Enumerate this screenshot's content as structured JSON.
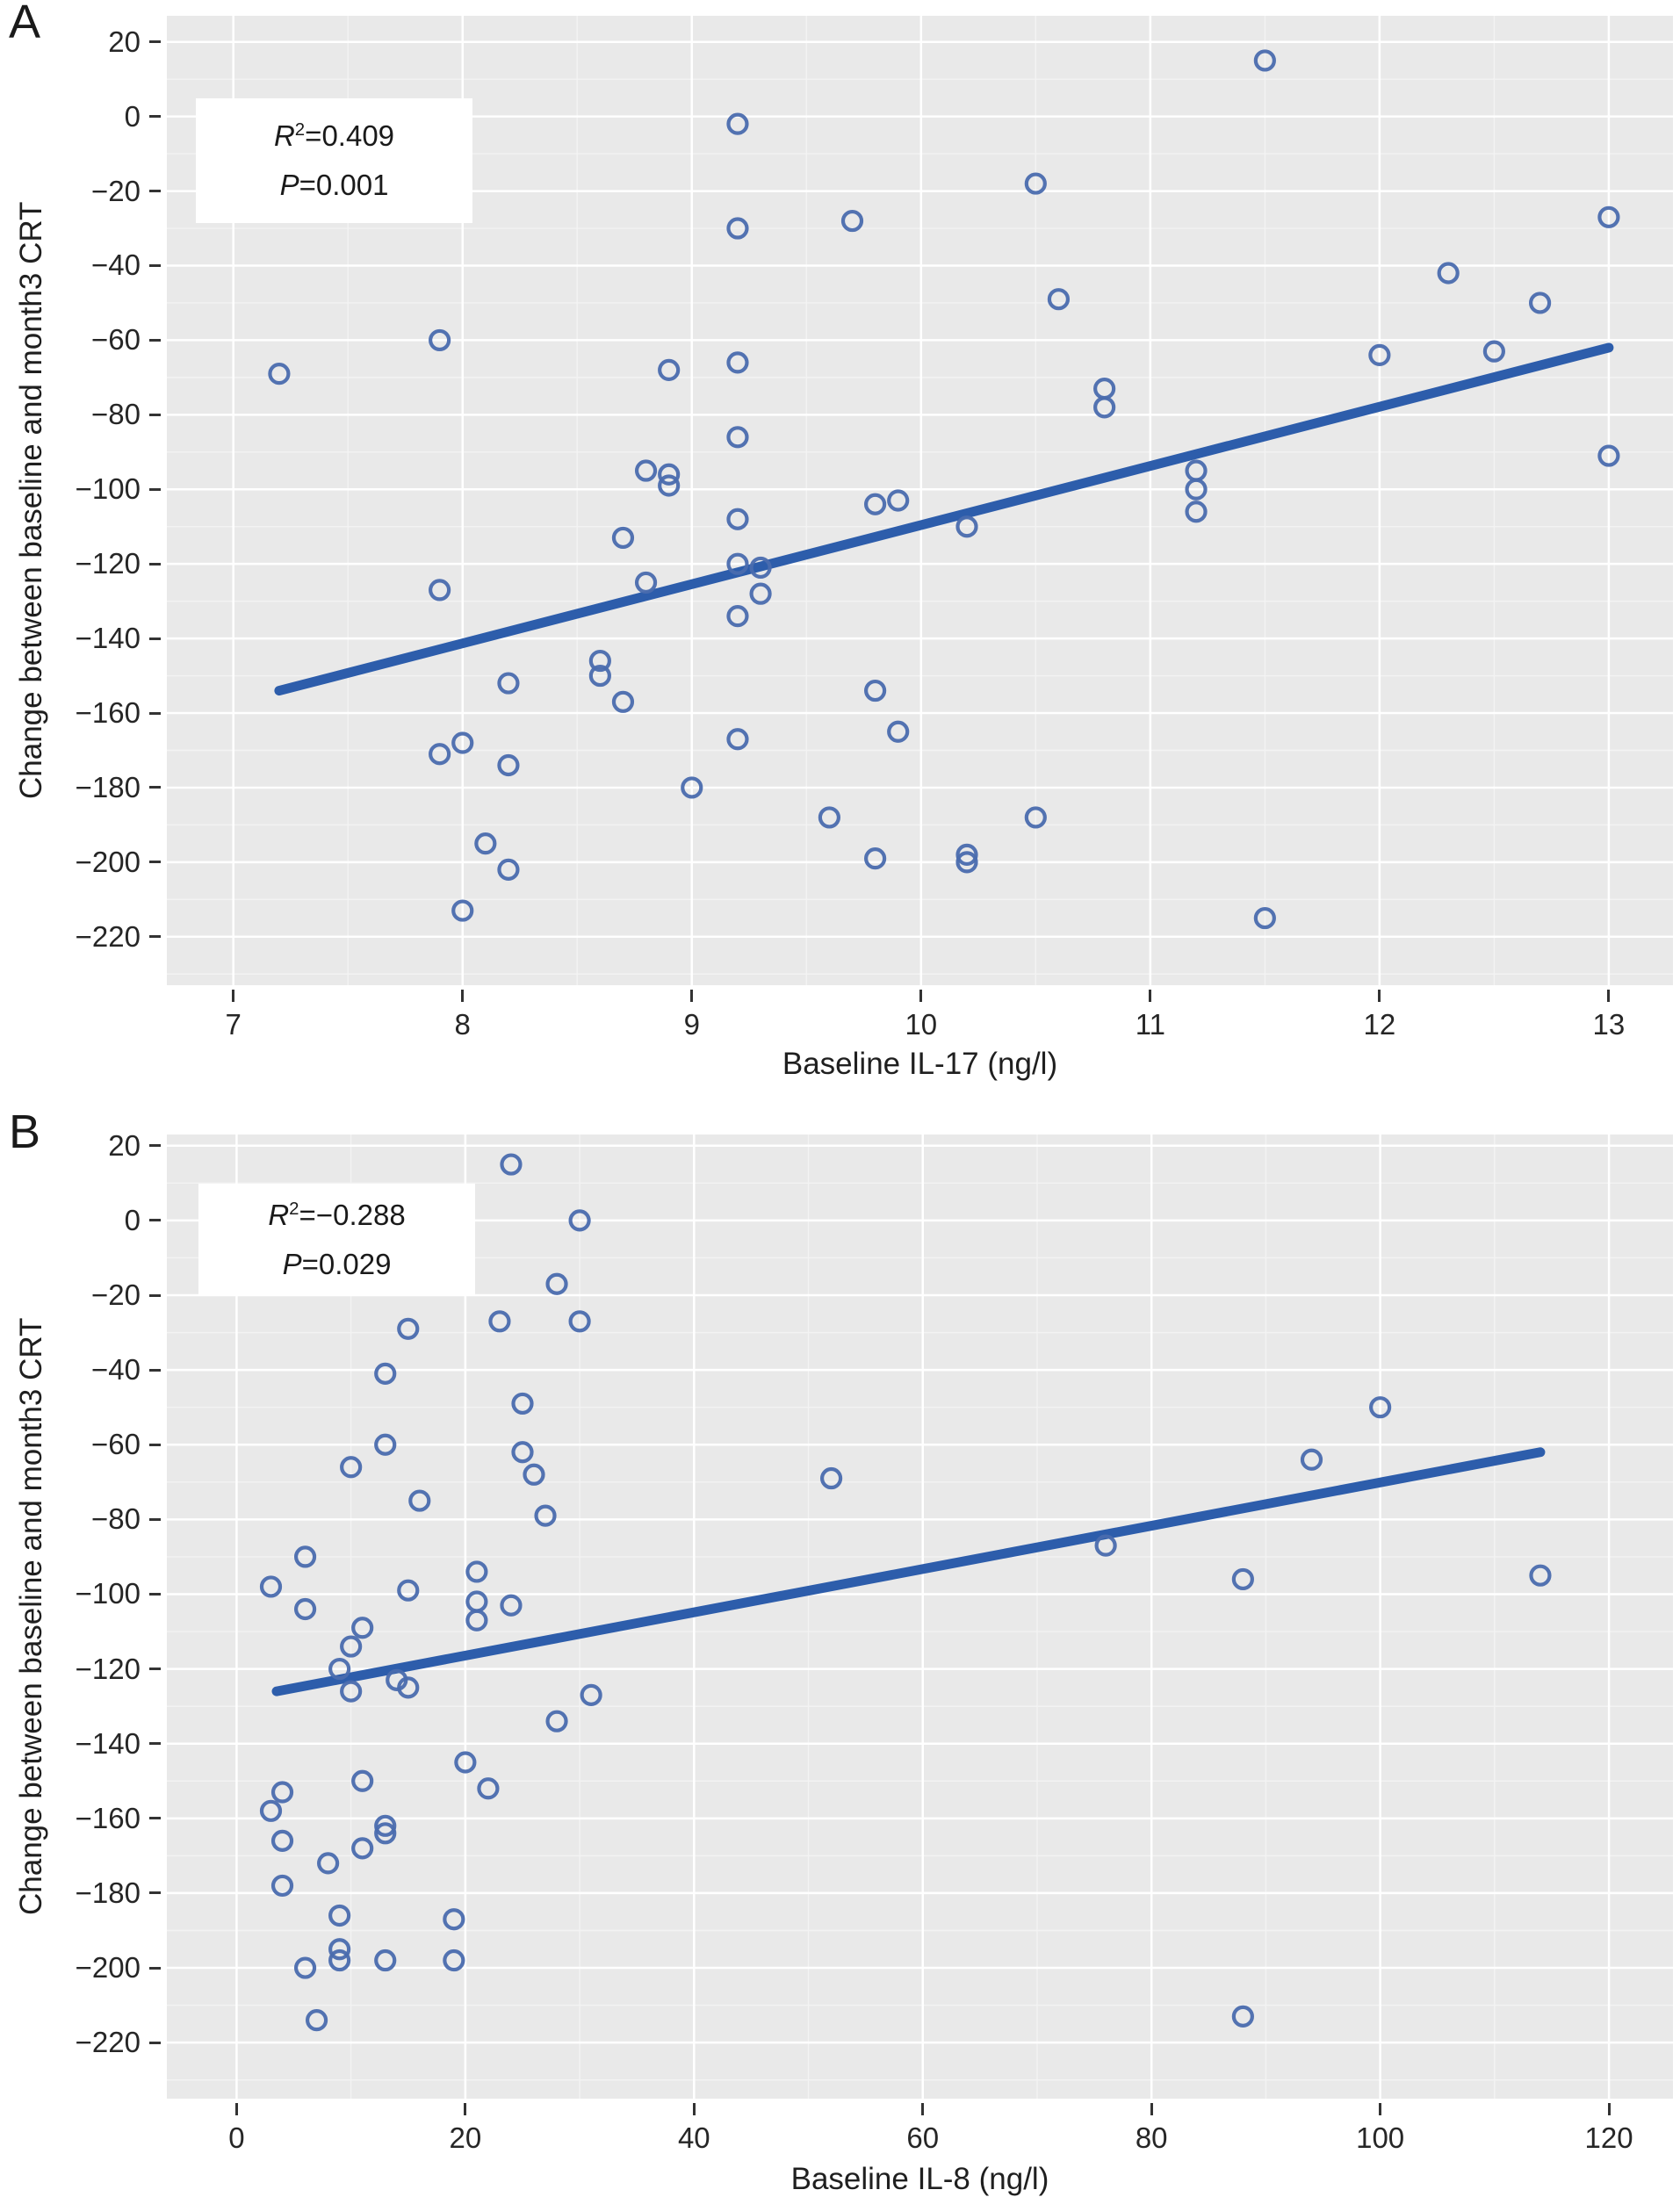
{
  "figure": {
    "panel_a_label": "A",
    "panel_b_label": "B",
    "background": "#ffffff",
    "plot_background": "#e9e9e9",
    "grid_major_color": "#ffffff",
    "grid_minor_color": "#f3f3f3",
    "tick_color": "#333333",
    "text_color": "#262626",
    "point_color": "#4a6bae",
    "line_color": "#2d5dab"
  },
  "chart_data": [
    {
      "id": "A",
      "type": "scatter",
      "xlabel": "Baseline IL-17 (ng/l)",
      "ylabel": "Change between baseline and month3 CRT",
      "stats": {
        "r_symbol": "R",
        "r_sup": "2",
        "r_value": "=0.409",
        "p_symbol": "P",
        "p_value": "=0.001"
      },
      "xlim": [
        6.71,
        13.28
      ],
      "ylim": [
        -233,
        27
      ],
      "x_ticks": [
        7,
        8,
        9,
        10,
        11,
        12,
        13
      ],
      "x_tick_labels": [
        "7",
        "8",
        "9",
        "10",
        "11",
        "12",
        "13"
      ],
      "x_minor": [
        7.5,
        8.5,
        9.5,
        10.5,
        11.5,
        12.5
      ],
      "y_ticks": [
        20,
        0,
        -20,
        -40,
        -60,
        -80,
        -100,
        -120,
        -140,
        -160,
        -180,
        -200,
        -220
      ],
      "y_tick_labels": [
        "20",
        "0",
        "−20",
        "−40",
        "−60",
        "−80",
        "−100",
        "−120",
        "−140",
        "−160",
        "−180",
        "−200",
        "−220"
      ],
      "y_minor": [
        10,
        -10,
        -30,
        -50,
        -70,
        -90,
        -110,
        -130,
        -150,
        -170,
        -190,
        -210,
        -230
      ],
      "grid": true,
      "legend": "none",
      "trend_line": {
        "x": [
          7.2,
          13.0
        ],
        "y": [
          -154,
          -62
        ]
      },
      "points": [
        [
          11.5,
          15
        ],
        [
          9.2,
          -2
        ],
        [
          10.5,
          -18
        ],
        [
          9.7,
          -28
        ],
        [
          13,
          -27
        ],
        [
          9.2,
          -30
        ],
        [
          12.3,
          -42
        ],
        [
          10.6,
          -49
        ],
        [
          12.7,
          -50
        ],
        [
          7.9,
          -60
        ],
        [
          12,
          -64
        ],
        [
          12.5,
          -63
        ],
        [
          9.2,
          -66
        ],
        [
          8.9,
          -68
        ],
        [
          7.2,
          -69
        ],
        [
          10.8,
          -73
        ],
        [
          10.8,
          -78
        ],
        [
          9.2,
          -86
        ],
        [
          13,
          -91
        ],
        [
          8.8,
          -95
        ],
        [
          8.9,
          -96
        ],
        [
          8.9,
          -99
        ],
        [
          11.2,
          -95
        ],
        [
          11.2,
          -100
        ],
        [
          11.2,
          -106
        ],
        [
          9.8,
          -104
        ],
        [
          9.9,
          -103
        ],
        [
          10.2,
          -110
        ],
        [
          9.2,
          -108
        ],
        [
          8.7,
          -113
        ],
        [
          9.2,
          -120
        ],
        [
          9.3,
          -121
        ],
        [
          9.3,
          -128
        ],
        [
          9.2,
          -134
        ],
        [
          8.8,
          -125
        ],
        [
          7.9,
          -127
        ],
        [
          8.6,
          -146
        ],
        [
          8.6,
          -150
        ],
        [
          8.2,
          -152
        ],
        [
          9.8,
          -154
        ],
        [
          8.7,
          -157
        ],
        [
          9.9,
          -165
        ],
        [
          9.2,
          -167
        ],
        [
          8.0,
          -168
        ],
        [
          7.9,
          -171
        ],
        [
          8.2,
          -174
        ],
        [
          9.0,
          -180
        ],
        [
          9.6,
          -188
        ],
        [
          10.5,
          -188
        ],
        [
          8.1,
          -195
        ],
        [
          9.8,
          -199
        ],
        [
          10.2,
          -198
        ],
        [
          10.2,
          -200
        ],
        [
          8.2,
          -202
        ],
        [
          8.0,
          -213
        ],
        [
          11.5,
          -215
        ]
      ]
    },
    {
      "id": "B",
      "type": "scatter",
      "xlabel": "Baseline IL-8 (ng/l)",
      "ylabel": "Change between baseline and month3 CRT",
      "stats": {
        "r_symbol": "R",
        "r_sup": "2",
        "r_value": "=−0.288",
        "p_symbol": "P",
        "p_value": "=0.029"
      },
      "xlim": [
        -6.1,
        125.6
      ],
      "ylim": [
        -235,
        23
      ],
      "x_ticks": [
        0,
        20,
        40,
        60,
        80,
        100,
        120
      ],
      "x_tick_labels": [
        "0",
        "20",
        "40",
        "60",
        "80",
        "100",
        "120"
      ],
      "x_minor": [
        10,
        30,
        50,
        70,
        90,
        110
      ],
      "y_ticks": [
        20,
        0,
        -20,
        -40,
        -60,
        -80,
        -100,
        -120,
        -140,
        -160,
        -180,
        -200,
        -220
      ],
      "y_tick_labels": [
        "20",
        "0",
        "−20",
        "−40",
        "−60",
        "−80",
        "−100",
        "−120",
        "−140",
        "−160",
        "−180",
        "−200",
        "−220"
      ],
      "y_minor": [
        10,
        -10,
        -30,
        -50,
        -70,
        -90,
        -110,
        -130,
        -150,
        -170,
        -190,
        -210,
        -230
      ],
      "grid": true,
      "legend": "none",
      "trend_line": {
        "x": [
          3.5,
          114
        ],
        "y": [
          -126,
          -62
        ]
      },
      "points": [
        [
          24,
          15
        ],
        [
          30,
          0
        ],
        [
          28,
          -17
        ],
        [
          23,
          -27
        ],
        [
          30,
          -27
        ],
        [
          15,
          -29
        ],
        [
          13,
          -41
        ],
        [
          25,
          -49
        ],
        [
          100,
          -50
        ],
        [
          13,
          -60
        ],
        [
          25,
          -62
        ],
        [
          94,
          -64
        ],
        [
          10,
          -66
        ],
        [
          26,
          -68
        ],
        [
          52,
          -69
        ],
        [
          16,
          -75
        ],
        [
          27,
          -79
        ],
        [
          76,
          -87
        ],
        [
          6,
          -90
        ],
        [
          114,
          -95
        ],
        [
          88,
          -96
        ],
        [
          21,
          -94
        ],
        [
          3,
          -98
        ],
        [
          15,
          -99
        ],
        [
          21,
          -102
        ],
        [
          21,
          -107
        ],
        [
          24,
          -103
        ],
        [
          6,
          -104
        ],
        [
          11,
          -109
        ],
        [
          10,
          -114
        ],
        [
          9,
          -120
        ],
        [
          14,
          -123
        ],
        [
          15,
          -125
        ],
        [
          10,
          -126
        ],
        [
          31,
          -127
        ],
        [
          28,
          -134
        ],
        [
          20,
          -145
        ],
        [
          11,
          -150
        ],
        [
          22,
          -152
        ],
        [
          4,
          -153
        ],
        [
          3,
          -158
        ],
        [
          13,
          -162
        ],
        [
          13,
          -164
        ],
        [
          4,
          -166
        ],
        [
          11,
          -168
        ],
        [
          8,
          -172
        ],
        [
          4,
          -178
        ],
        [
          9,
          -186
        ],
        [
          19,
          -187
        ],
        [
          9,
          -195
        ],
        [
          9,
          -198
        ],
        [
          6,
          -200
        ],
        [
          13,
          -198
        ],
        [
          19,
          -198
        ],
        [
          7,
          -214
        ],
        [
          88,
          -213
        ]
      ]
    }
  ]
}
